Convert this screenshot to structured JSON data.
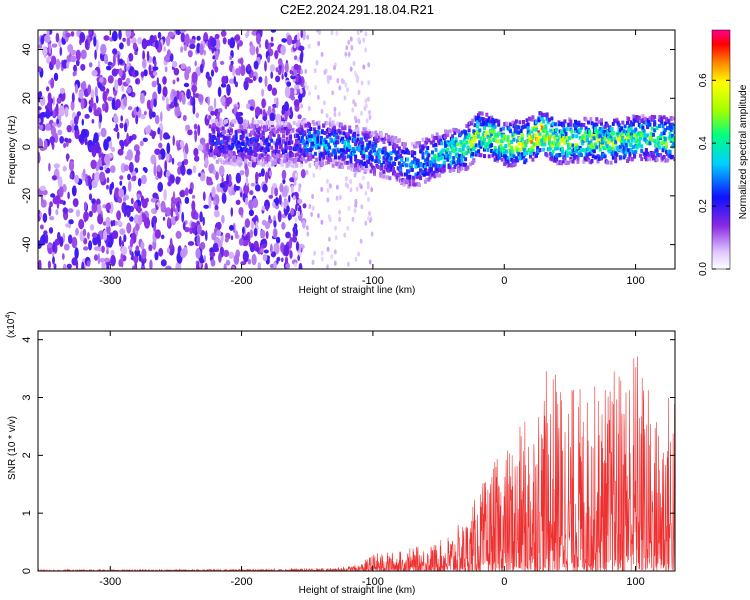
{
  "figure": {
    "title": "C2E2.2024.291.18.04.R21"
  },
  "chart_data": [
    {
      "type": "heatmap",
      "name": "spectrogram",
      "xlabel": "Height of straight line (km)",
      "ylabel": "Frequency (Hz)",
      "xlim": [
        -355,
        130
      ],
      "ylim": [
        -50,
        48
      ],
      "xticks": [
        -300,
        -200,
        -100,
        0,
        100
      ],
      "yticks": [
        -40,
        -20,
        0,
        20,
        40
      ],
      "colorbar": {
        "label": "Normalized spectral amplitude",
        "range": [
          0,
          0.76
        ],
        "ticks": [
          "0.0",
          "0.2",
          "0.4",
          "0.6"
        ],
        "tick_values": [
          0,
          0.2,
          0.4,
          0.6
        ]
      },
      "noise_floor_cutoff_x": -160,
      "ridge": [
        {
          "x": -220,
          "f": 2,
          "amp": 0.22
        },
        {
          "x": -160,
          "f": 1,
          "amp": 0.2
        },
        {
          "x": -150,
          "f": 2,
          "amp": 0.3
        },
        {
          "x": -130,
          "f": 1,
          "amp": 0.3
        },
        {
          "x": -110,
          "f": -1,
          "amp": 0.3
        },
        {
          "x": -95,
          "f": -3,
          "amp": 0.28
        },
        {
          "x": -80,
          "f": -6,
          "amp": 0.28
        },
        {
          "x": -70,
          "f": -8,
          "amp": 0.3
        },
        {
          "x": -60,
          "f": -5,
          "amp": 0.3
        },
        {
          "x": -50,
          "f": -3,
          "amp": 0.38
        },
        {
          "x": -30,
          "f": 0,
          "amp": 0.42
        },
        {
          "x": -20,
          "f": 5,
          "amp": 0.5
        },
        {
          "x": -10,
          "f": 4,
          "amp": 0.45
        },
        {
          "x": 0,
          "f": 1,
          "amp": 0.48
        },
        {
          "x": 15,
          "f": 2,
          "amp": 0.5
        },
        {
          "x": 28,
          "f": 6,
          "amp": 0.6
        },
        {
          "x": 40,
          "f": 2,
          "amp": 0.48
        },
        {
          "x": 60,
          "f": 3,
          "amp": 0.45
        },
        {
          "x": 80,
          "f": 2,
          "amp": 0.45
        },
        {
          "x": 100,
          "f": 4,
          "amp": 0.45
        },
        {
          "x": 130,
          "f": 3,
          "amp": 0.42
        }
      ]
    },
    {
      "type": "line",
      "name": "snr",
      "xlabel": "Height of straight line (km)",
      "ylabel": "SNR (10 * v/v)",
      "scale_label": "(x10",
      "scale_exponent": "4",
      "xlim": [
        -355,
        130
      ],
      "ylim": [
        0,
        4.15
      ],
      "xticks": [
        -300,
        -200,
        -100,
        0,
        100
      ],
      "yticks": [
        0,
        1,
        2,
        3,
        4
      ],
      "color": "#ee3030",
      "envelope": [
        {
          "x": -355,
          "y": 0.02
        },
        {
          "x": -200,
          "y": 0.03
        },
        {
          "x": -130,
          "y": 0.05
        },
        {
          "x": -110,
          "y": 0.12
        },
        {
          "x": -100,
          "y": 0.3
        },
        {
          "x": -80,
          "y": 0.35
        },
        {
          "x": -50,
          "y": 0.5
        },
        {
          "x": -30,
          "y": 0.9
        },
        {
          "x": -10,
          "y": 1.8
        },
        {
          "x": 10,
          "y": 2.4
        },
        {
          "x": 35,
          "y": 3.6
        },
        {
          "x": 60,
          "y": 3.1
        },
        {
          "x": 80,
          "y": 3.3
        },
        {
          "x": 100,
          "y": 4.1
        },
        {
          "x": 115,
          "y": 2.8
        },
        {
          "x": 130,
          "y": 3.4
        }
      ]
    }
  ]
}
